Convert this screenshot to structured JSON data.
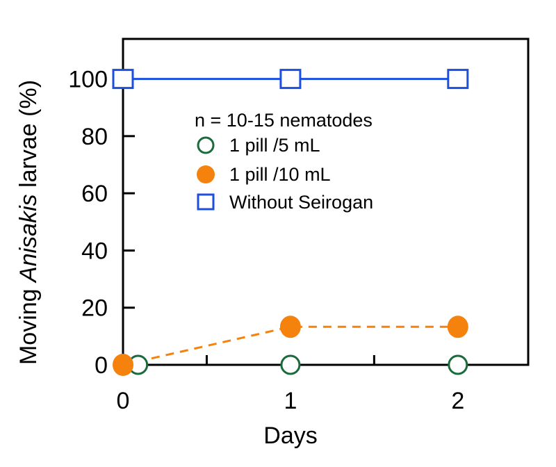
{
  "chart_data": {
    "type": "line",
    "title": "",
    "xlabel": "Days",
    "ylabel_prefix": "Moving ",
    "ylabel_italic": "Anisakis",
    "ylabel_suffix": " larvae (%)",
    "x_ticks": [
      0,
      1,
      2
    ],
    "x_tick_labels": [
      "0",
      "1",
      "2"
    ],
    "x_minor_ticks": [
      0.5,
      1.5
    ],
    "xlim": [
      0,
      2.42
    ],
    "y_ticks": [
      0,
      20,
      40,
      60,
      80,
      100
    ],
    "y_tick_labels": [
      "0",
      "20",
      "40",
      "60",
      "80",
      "100"
    ],
    "ylim": [
      0,
      114
    ],
    "grid": false,
    "legend_title": "n = 10-15 nematodes",
    "legend_position": "upper-center",
    "series": [
      {
        "name": "1 pill /5 mL",
        "marker": "open-circle",
        "line": "none",
        "color": "#1a6b3c",
        "x": [
          0.09,
          1,
          2
        ],
        "y": [
          0,
          0,
          0
        ]
      },
      {
        "name": "1 pill /10 mL",
        "marker": "filled-circle",
        "line": "dashed",
        "color": "#f5820d",
        "x": [
          0,
          1,
          2
        ],
        "y": [
          0,
          13.3,
          13.3
        ]
      },
      {
        "name": "Without Seirogan",
        "marker": "open-square",
        "line": "solid",
        "color": "#1a4fe0",
        "x": [
          0,
          1,
          2
        ],
        "y": [
          100,
          100,
          100
        ]
      }
    ]
  }
}
